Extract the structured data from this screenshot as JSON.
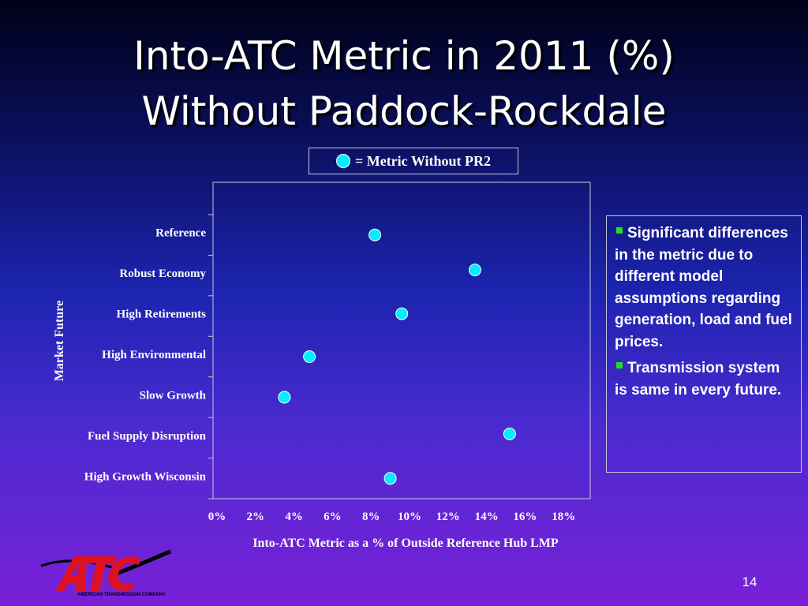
{
  "slide": {
    "title_line1": "Into-ATC Metric in 2011 (%)",
    "title_line2": "Without Paddock-Rockdale",
    "page_number": "14"
  },
  "legend": {
    "text": "= Metric Without PR2",
    "marker_color": "#00eeff"
  },
  "notes": [
    "Significant differences in the metric due to different model assumptions regarding generation, load and fuel prices.",
    "Transmission system is same in every future."
  ],
  "logo": {
    "company": "AMERICAN TRANSMISSION COMPANY"
  },
  "colors": {
    "marker": "#00eeff",
    "bullet": "#22dd22",
    "logo_red": "#dd1122"
  },
  "chart_data": {
    "type": "scatter",
    "categories": [
      "Reference",
      "Robust Economy",
      "High Retirements",
      "High Environmental",
      "Slow Growth",
      "Fuel Supply Disruption",
      "High Growth Wisconsin"
    ],
    "values": [
      8.2,
      13.4,
      9.6,
      4.8,
      3.5,
      15.2,
      9.0
    ],
    "x_tick_labels": [
      "0%",
      "2%",
      "4%",
      "6%",
      "8%",
      "10%",
      "12%",
      "14%",
      "16%",
      "18%"
    ],
    "xlim": [
      0,
      19.5
    ],
    "xlabel": "Into-ATC Metric as a % of Outside Reference Hub LMP",
    "ylabel": "Market Future",
    "grid": false,
    "legend_position": "top-center"
  }
}
